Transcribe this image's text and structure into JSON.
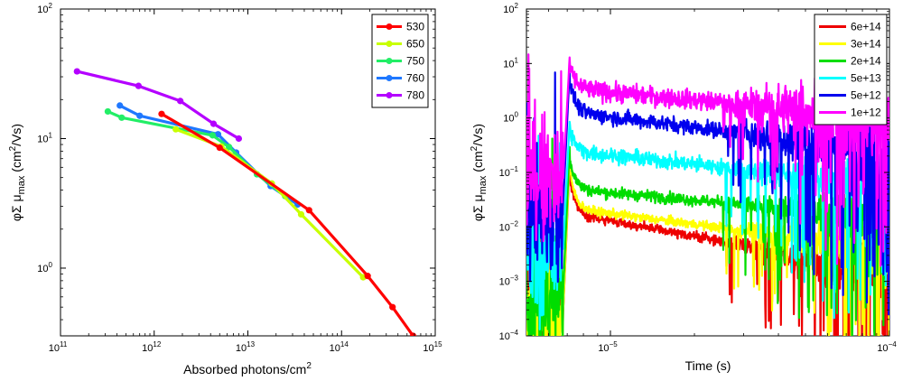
{
  "chart_data": [
    {
      "type": "line",
      "title": "",
      "xlabel": "Absorbed photons/cm",
      "xlabel_sup": "2",
      "ylabel_parts": [
        "φΣ μ",
        "max",
        " (cm",
        "2",
        "/Vs)"
      ],
      "xscale": "log",
      "yscale": "log",
      "xlim": [
        100000000000.0,
        1000000000000000.0
      ],
      "ylim": [
        0.3,
        100
      ],
      "xticks": [
        {
          "v": 100000000000.0,
          "m": "10",
          "e": "11"
        },
        {
          "v": 1000000000000.0,
          "m": "10",
          "e": "12"
        },
        {
          "v": 10000000000000.0,
          "m": "10",
          "e": "13"
        },
        {
          "v": 100000000000000.0,
          "m": "10",
          "e": "14"
        },
        {
          "v": 1000000000000000.0,
          "m": "10",
          "e": "15"
        }
      ],
      "yticks": [
        {
          "v": 1,
          "m": "10",
          "e": "0"
        },
        {
          "v": 10,
          "m": "10",
          "e": "1"
        },
        {
          "v": 100,
          "m": "10",
          "e": "2"
        }
      ],
      "legend_position": "top-right",
      "markers": true,
      "series": [
        {
          "name": "780",
          "color": "#b400ff",
          "x": [
            150000000000.0,
            680000000000.0,
            1900000000000.0,
            4300000000000.0,
            8000000000000.0
          ],
          "y": [
            33,
            25.5,
            19.5,
            13,
            10
          ]
        },
        {
          "name": "760",
          "color": "#1f78ff",
          "x": [
            430000000000.0,
            700000000000.0,
            4800000000000.0,
            7500000000000.0,
            17500000000000.0,
            34000000000000.0
          ],
          "y": [
            18,
            15,
            10.8,
            7.8,
            4.3,
            3.1
          ]
        },
        {
          "name": "750",
          "color": "#22ee66",
          "x": [
            320000000000.0,
            450000000000.0,
            4200000000000.0,
            6300000000000.0,
            12500000000000.0,
            25000000000000.0
          ],
          "y": [
            16.2,
            14.5,
            10.6,
            8.6,
            5.3,
            3.6
          ]
        },
        {
          "name": "650",
          "color": "#c8ff00",
          "x": [
            1700000000000.0,
            5200000000000.0,
            18000000000000.0,
            37000000000000.0,
            170000000000000.0
          ],
          "y": [
            11.8,
            8.7,
            4.5,
            2.6,
            0.85
          ]
        },
        {
          "name": "530",
          "color": "#ff0000",
          "x": [
            1200000000000.0,
            5000000000000.0,
            45000000000000.0,
            190000000000000.0,
            350000000000000.0,
            580000000000000.0
          ],
          "y": [
            15.5,
            8.5,
            2.8,
            0.87,
            0.5,
            0.3
          ]
        }
      ],
      "legend_order": [
        "530",
        "650",
        "750",
        "760",
        "780"
      ]
    },
    {
      "type": "line",
      "title": "",
      "xlabel": "Time (s)",
      "ylabel_parts": [
        "φΣ μ",
        "max",
        " (cm",
        "2",
        "/Vs)"
      ],
      "xscale": "log",
      "yscale": "log",
      "xlim": [
        5e-06,
        0.0001
      ],
      "ylim": [
        0.0001,
        100
      ],
      "xticks": [
        {
          "v": 1e-05,
          "m": "10",
          "e": "−5"
        },
        {
          "v": 0.0001,
          "m": "10",
          "e": "−4"
        }
      ],
      "yticks": [
        {
          "v": 0.0001,
          "m": "10",
          "e": "−4"
        },
        {
          "v": 0.001,
          "m": "10",
          "e": "−3"
        },
        {
          "v": 0.01,
          "m": "10",
          "e": "−2"
        },
        {
          "v": 0.1,
          "m": "10",
          "e": "−1"
        },
        {
          "v": 1,
          "m": "10",
          "e": "0"
        },
        {
          "v": 10,
          "m": "10",
          "e": "1"
        },
        {
          "v": 100,
          "m": "10",
          "e": "2"
        }
      ],
      "legend_position": "top-right",
      "markers": false,
      "pulse_time": 7e-06,
      "series": [
        {
          "name": "1e+12",
          "color": "#ff00ff",
          "peak": 15,
          "after": 3.5,
          "end": 1.0,
          "floor": 0.06,
          "noise_pre": 1.6,
          "noise_post": 0.25,
          "noise_late": 1.1
        },
        {
          "name": "5e+12",
          "color": "#0000ee",
          "peak": 9,
          "after": 1.3,
          "end": 0.25,
          "floor": 0.02,
          "noise_pre": 1.4,
          "noise_post": 0.2,
          "noise_late": 0.9
        },
        {
          "name": "5e+13",
          "color": "#00ffff",
          "peak": 1.0,
          "after": 0.25,
          "end": 0.06,
          "floor": 0.003,
          "noise_pre": 1.3,
          "noise_post": 0.2,
          "noise_late": 0.5
        },
        {
          "name": "2e+14",
          "color": "#00dd00",
          "peak": 0.35,
          "after": 0.05,
          "end": 0.015,
          "floor": 0.0005,
          "noise_pre": 1.3,
          "noise_post": 0.15,
          "noise_late": 0.6
        },
        {
          "name": "3e+14",
          "color": "#ffff00",
          "peak": 0.25,
          "after": 0.022,
          "end": 0.004,
          "floor": 0.0002,
          "noise_pre": 1.4,
          "noise_post": 0.12,
          "noise_late": 0.7
        },
        {
          "name": "6e+14",
          "color": "#ee0000",
          "peak": 0.2,
          "after": 0.018,
          "end": 0.0015,
          "floor": 0.0002,
          "noise_pre": 1.4,
          "noise_post": 0.12,
          "noise_late": 0.9
        }
      ],
      "legend_order": [
        "6e+14",
        "3e+14",
        "2e+14",
        "5e+13",
        "5e+12",
        "1e+12"
      ]
    }
  ]
}
